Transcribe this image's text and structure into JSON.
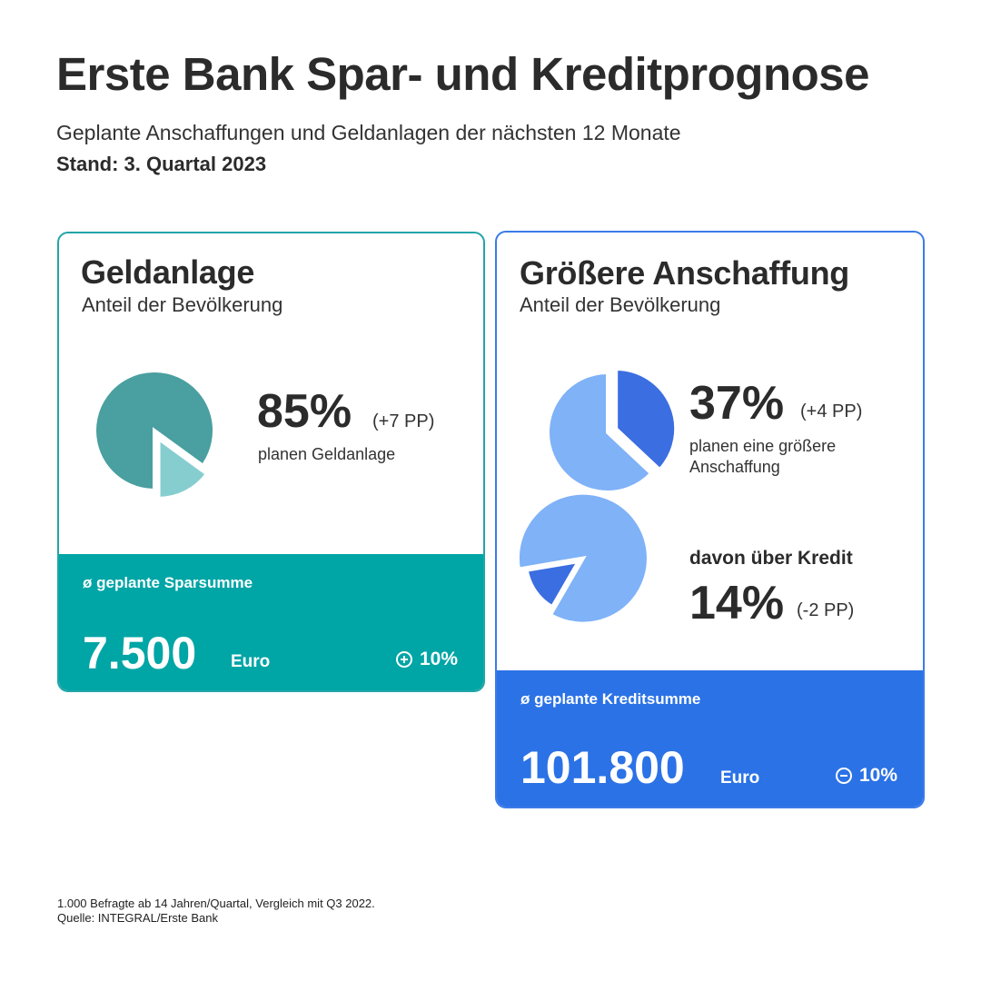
{
  "header": {
    "title": "Erste Bank Spar- und Kreditprognose",
    "subtitle": "Geplante Anschaffungen und Geldanlagen der nächsten 12 Monate",
    "stand": "Stand: 3. Quartal 2023"
  },
  "left_card": {
    "title": "Geldanlage",
    "subtitle": "Anteil der Bevölkerung",
    "value": "85%",
    "change": "(+7 PP)",
    "description": "planen Geldanlage",
    "band": {
      "label": "ø geplante Sparsumme",
      "value": "7.500",
      "unit": "Euro",
      "change": "10%",
      "change_icon": "plus-circle-icon"
    }
  },
  "right_card": {
    "title": "Größere Anschaffung",
    "subtitle": "Anteil der Bevölkerung",
    "value": "37%",
    "change": "(+4 PP)",
    "description_line1": "planen eine größere",
    "description_line2": "Anschaffung",
    "credit_label": "davon über Kredit",
    "credit_value": "14%",
    "credit_change": "(-2 PP)",
    "band": {
      "label": "ø geplante Kreditsumme",
      "value": "101.800",
      "unit": "Euro",
      "change": "10%",
      "change_icon": "minus-circle-icon"
    }
  },
  "footnote": {
    "line1": "1.000 Befragte ab 14 Jahren/Quartal, Vergleich mit Q3 2022.",
    "line2": "Quelle: INTEGRAL/Erste Bank"
  },
  "colors": {
    "teal_dark": "#4a9fa0",
    "teal_light": "#86cdd0",
    "blue_dark": "#3b6ee0",
    "blue_light": "#7fb2f7",
    "band_teal": "#00a5a6",
    "band_blue": "#2b72e6"
  },
  "chart_data": [
    {
      "type": "pie",
      "categories": [
        "planen Geldanlage",
        ""
      ],
      "values": [
        85,
        15
      ]
    },
    {
      "type": "pie",
      "categories": [
        "planen eine größere Anschaffung",
        ""
      ],
      "values": [
        37,
        63
      ]
    },
    {
      "type": "pie",
      "categories": [
        "davon über Kredit",
        ""
      ],
      "values": [
        14,
        86
      ]
    }
  ]
}
